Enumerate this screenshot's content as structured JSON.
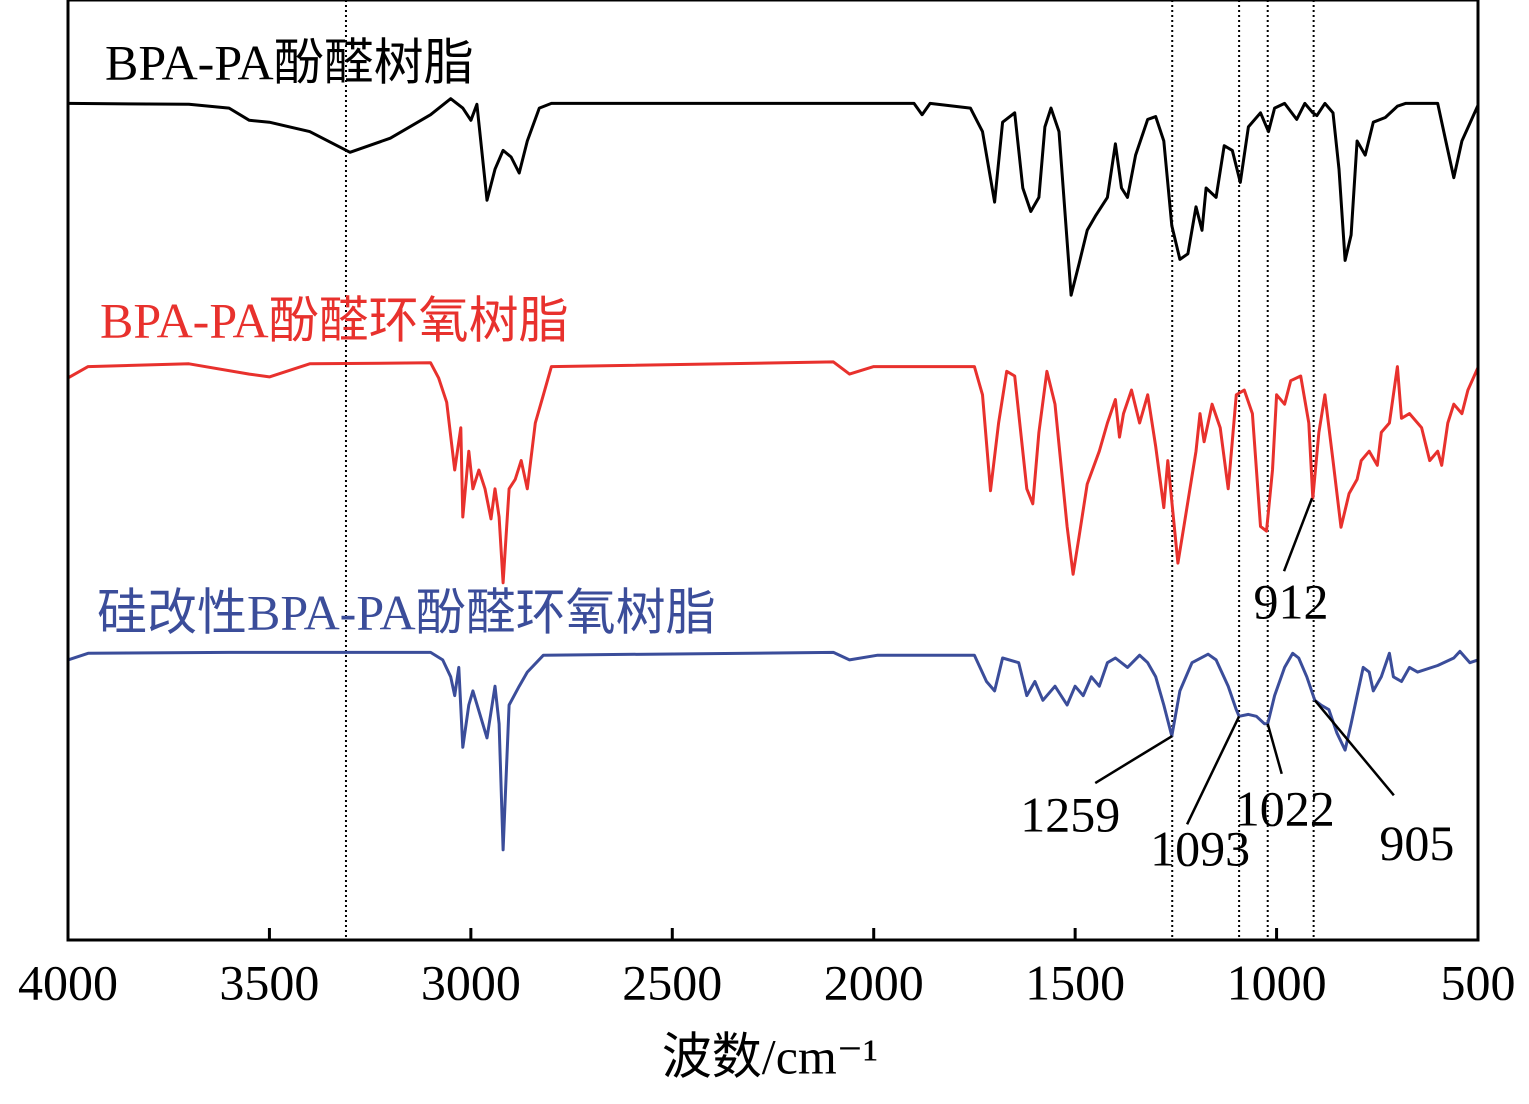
{
  "chart_data": {
    "type": "line",
    "xlabel": "波数/cm⁻¹",
    "xlim": [
      4000,
      500
    ],
    "xticks": [
      4000,
      3500,
      3000,
      2500,
      2000,
      1500,
      1000,
      500
    ],
    "ylim": [
      0,
      100
    ],
    "vlines": [
      3310,
      1259,
      1093,
      1022,
      908
    ],
    "series": [
      {
        "name": "BPA-PA酚醛树脂",
        "color": "#000000",
        "x": [
          4000,
          3700,
          3600,
          3550,
          3500,
          3400,
          3300,
          3200,
          3100,
          3050,
          3020,
          3000,
          2985,
          2960,
          2940,
          2920,
          2900,
          2880,
          2860,
          2830,
          2800,
          1900,
          1880,
          1860,
          1760,
          1730,
          1700,
          1680,
          1650,
          1630,
          1610,
          1590,
          1575,
          1560,
          1540,
          1510,
          1490,
          1470,
          1450,
          1420,
          1400,
          1385,
          1370,
          1350,
          1320,
          1300,
          1280,
          1260,
          1240,
          1220,
          1200,
          1185,
          1175,
          1150,
          1130,
          1110,
          1090,
          1070,
          1040,
          1020,
          1005,
          980,
          950,
          930,
          910,
          900,
          880,
          860,
          845,
          830,
          815,
          800,
          780,
          760,
          730,
          700,
          680,
          600,
          580,
          560,
          540,
          500
        ],
        "values": [
          89,
          88.9,
          88.5,
          87.2,
          87,
          86,
          83.8,
          85.3,
          87.8,
          89.5,
          88.5,
          87.2,
          88.9,
          78.7,
          82,
          84,
          83.3,
          81.6,
          85,
          88.5,
          89,
          89,
          87.8,
          89,
          88.5,
          86,
          78.5,
          87,
          88,
          80,
          77.5,
          79,
          86.5,
          88.5,
          86,
          68.6,
          72,
          75.5,
          77,
          79,
          84.7,
          80,
          79,
          83.5,
          87.3,
          87.6,
          85,
          76,
          72.4,
          73,
          78,
          75.5,
          80,
          79,
          84.5,
          84,
          80.6,
          86.5,
          88,
          86,
          88.5,
          89,
          87.3,
          89,
          88,
          87.7,
          89,
          88,
          82,
          72.3,
          75,
          85,
          83.5,
          87,
          87.5,
          88.7,
          89,
          89,
          85,
          81.1,
          85,
          88.8
        ]
      },
      {
        "name": "BPA-PA酚醛环氧树脂",
        "color": "#e8312d",
        "x": [
          4000,
          3950,
          3700,
          3550,
          3500,
          3400,
          3100,
          3080,
          3060,
          3040,
          3025,
          3020,
          3005,
          2995,
          2980,
          2965,
          2950,
          2940,
          2930,
          2920,
          2905,
          2890,
          2875,
          2860,
          2840,
          2820,
          2800,
          2100,
          2060,
          2000,
          1750,
          1730,
          1710,
          1690,
          1670,
          1650,
          1620,
          1605,
          1590,
          1570,
          1550,
          1520,
          1505,
          1490,
          1470,
          1440,
          1420,
          1400,
          1390,
          1380,
          1360,
          1340,
          1320,
          1300,
          1280,
          1270,
          1245,
          1230,
          1200,
          1190,
          1180,
          1160,
          1140,
          1120,
          1100,
          1080,
          1060,
          1040,
          1025,
          1010,
          1000,
          980,
          965,
          940,
          920,
          910,
          895,
          880,
          860,
          840,
          820,
          800,
          790,
          770,
          750,
          740,
          720,
          700,
          690,
          670,
          640,
          620,
          600,
          590,
          575,
          560,
          540,
          525,
          500
        ],
        "values": [
          59.8,
          61,
          61.3,
          60.2,
          59.9,
          61.3,
          61.4,
          59.8,
          57.2,
          50,
          54.5,
          45,
          52,
          48,
          50,
          48,
          44.8,
          48,
          45,
          38,
          48,
          49,
          51,
          48,
          55,
          58,
          61,
          61.5,
          60.2,
          61,
          61,
          58,
          47.8,
          55,
          60.5,
          60,
          48,
          46.4,
          54,
          60.5,
          57,
          44,
          38.9,
          43,
          48.5,
          52,
          55,
          57.5,
          53.5,
          56,
          58.5,
          55,
          58,
          52.5,
          46,
          51,
          40.1,
          44,
          52,
          56,
          53,
          57,
          54.5,
          48,
          58,
          58.5,
          56,
          44,
          43.5,
          50,
          58,
          57,
          59.5,
          60,
          55,
          47,
          54,
          58,
          51,
          43.9,
          47.5,
          49,
          51,
          52,
          50.5,
          54,
          55,
          61,
          55.5,
          56,
          54.5,
          51,
          52,
          50.5,
          55,
          57,
          56,
          58.5,
          60.9
        ]
      },
      {
        "name": "硅改性BPA-PA酚醛环氧树脂",
        "color": "#3b4d9a",
        "x": [
          4000,
          3950,
          3600,
          3100,
          3070,
          3050,
          3040,
          3030,
          3020,
          3005,
          2995,
          2960,
          2940,
          2930,
          2920,
          2905,
          2880,
          2860,
          2820,
          2100,
          2060,
          1990,
          1750,
          1720,
          1700,
          1680,
          1640,
          1620,
          1600,
          1580,
          1550,
          1520,
          1500,
          1480,
          1460,
          1440,
          1420,
          1400,
          1370,
          1340,
          1320,
          1300,
          1280,
          1260,
          1240,
          1210,
          1170,
          1150,
          1120,
          1100,
          1093,
          1070,
          1050,
          1030,
          1022,
          1005,
          980,
          960,
          945,
          925,
          905,
          890,
          870,
          850,
          830,
          815,
          800,
          785,
          770,
          760,
          740,
          720,
          710,
          690,
          670,
          650,
          600,
          560,
          545,
          520,
          500
        ],
        "values": [
          29.8,
          30.5,
          30.6,
          30.6,
          29.8,
          28,
          26,
          29,
          20.5,
          25,
          26.5,
          21.5,
          27,
          23,
          9.6,
          25,
          27,
          28.5,
          30.3,
          30.6,
          29.8,
          30.3,
          30.3,
          27.5,
          26.5,
          30,
          29.5,
          26,
          27.5,
          25.5,
          27,
          25,
          27,
          26,
          28,
          27,
          29.5,
          30,
          29,
          30.3,
          29.5,
          28,
          25,
          21.7,
          26.5,
          29.5,
          30.4,
          29.8,
          27,
          24.5,
          23.8,
          24,
          23.8,
          23,
          23,
          26,
          29,
          30.5,
          30,
          28,
          25.5,
          25,
          24.5,
          22,
          20.2,
          23,
          26,
          29,
          28.5,
          26.5,
          28,
          30.5,
          28,
          27.5,
          29,
          28.5,
          29.2,
          30,
          30.7,
          29.5,
          29.8
        ]
      }
    ],
    "annotations": [
      {
        "text": "1259",
        "x": 1259,
        "y": 21.7
      },
      {
        "text": "1093",
        "x": 1093,
        "y": 23.8
      },
      {
        "text": "1022",
        "x": 1022,
        "y": 23
      },
      {
        "text": "905",
        "x": 905,
        "y": 25.5
      },
      {
        "text": "912",
        "x": 912,
        "y": 47
      }
    ]
  }
}
